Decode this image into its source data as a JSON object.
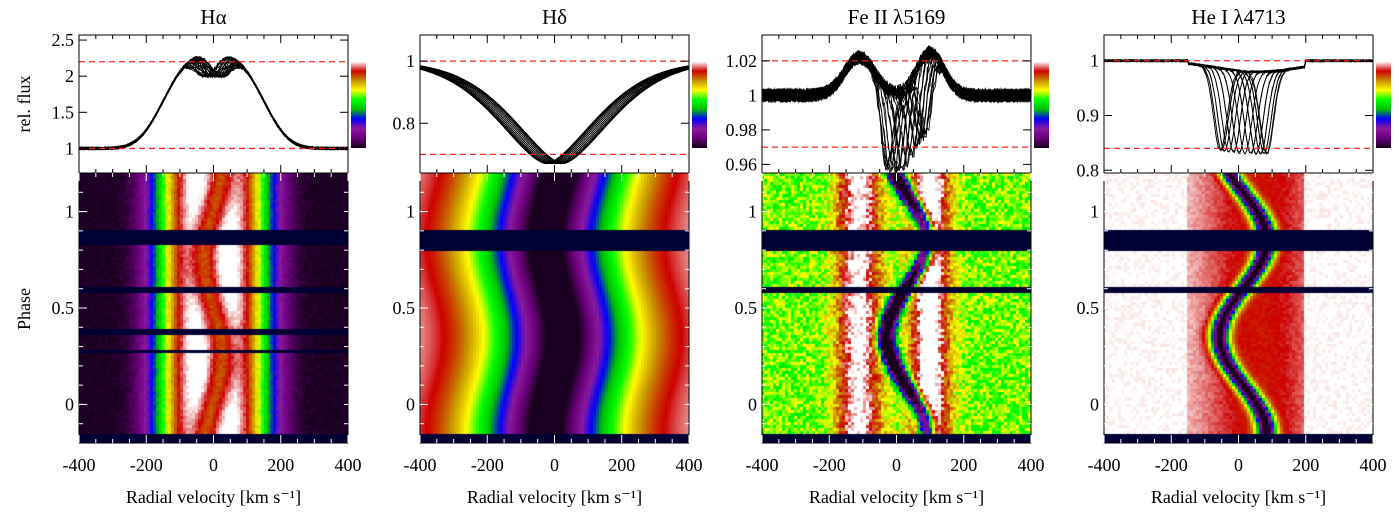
{
  "figure": {
    "shared_xlabel": "Radial velocity [km s⁻¹]",
    "profile_ylabel": "rel. flux",
    "phase_ylabel": "Phase",
    "colormap": [
      "#1a0020",
      "#6a007a",
      "#8a1aa0",
      "#0000ff",
      "#00c000",
      "#00ff00",
      "#ffff00",
      "#c89000",
      "#cc0000",
      "#ffffff"
    ],
    "gap_color": "#000033",
    "dashed_color": "#ff2020"
  },
  "chart_data": [
    {
      "type": "line+heatmap",
      "title": "Hα",
      "xlim": [
        -400,
        400
      ],
      "xticks": [
        -400,
        -200,
        0,
        200,
        400
      ],
      "ylim": [
        0.66,
        2.57
      ],
      "yticks": [
        1,
        1.5,
        2,
        2.5
      ],
      "ytick_labels": [
        "1",
        "1.5",
        "2",
        "2.5"
      ],
      "dashed_levels": [
        1.0,
        2.2
      ],
      "phase_lim": [
        -0.2,
        1.2
      ],
      "phase_ticks": [
        0,
        0.5,
        1
      ],
      "phase_gaps": [
        [
          0.82,
          0.9
        ],
        [
          0.585,
          0.61
        ],
        [
          0.36,
          0.385
        ],
        [
          0.26,
          0.285
        ]
      ],
      "line_model": "double-peaked emission, peaks ~2.25 at ±70, central dip ~1.9"
    },
    {
      "type": "line+heatmap",
      "title": "Hδ",
      "xlim": [
        -400,
        400
      ],
      "xticks": [
        -400,
        -200,
        0,
        200,
        400
      ],
      "ylim": [
        0.64,
        1.084
      ],
      "yticks": [
        0.8,
        1
      ],
      "ytick_labels": [
        "0.8",
        "1"
      ],
      "dashed_levels": [
        0.7,
        1.0
      ],
      "phase_lim": [
        -0.2,
        1.2
      ],
      "phase_ticks": [
        0,
        0.5,
        1
      ],
      "phase_gaps": [
        [
          0.8,
          0.9
        ]
      ],
      "line_model": "broad absorption, minimum ~0.67 moving between -50 and +50"
    },
    {
      "type": "line+heatmap",
      "title": "Fe II λ5169",
      "xlim": [
        -400,
        400
      ],
      "xticks": [
        -400,
        -200,
        0,
        200,
        400
      ],
      "ylim": [
        0.955,
        1.035
      ],
      "yticks": [
        0.96,
        0.98,
        1,
        1.02
      ],
      "ytick_labels": [
        "0.96",
        "0.98",
        "1",
        "1.02"
      ],
      "dashed_levels": [
        0.97,
        1.02
      ],
      "phase_lim": [
        -0.2,
        1.2
      ],
      "phase_ticks": [
        0,
        0.5,
        1
      ],
      "phase_gaps": [
        [
          0.8,
          0.9
        ],
        [
          0.585,
          0.61
        ]
      ],
      "line_model": "emission bumps ~1.025 at ±100, moving absorption to ~0.96"
    },
    {
      "type": "line+heatmap",
      "title": "He I λ4713",
      "xlim": [
        -400,
        400
      ],
      "xticks": [
        -400,
        -200,
        0,
        200,
        400
      ],
      "ylim": [
        0.795,
        1.047
      ],
      "yticks": [
        0.8,
        0.9,
        1
      ],
      "ytick_labels": [
        "0.8",
        "0.9",
        "1"
      ],
      "dashed_levels": [
        0.84,
        1.0
      ],
      "phase_lim": [
        -0.2,
        1.2
      ],
      "phase_ticks": [
        0,
        0.5,
        1
      ],
      "phase_gaps": [
        [
          0.8,
          0.9
        ],
        [
          0.585,
          0.61
        ]
      ],
      "line_model": "moving absorption to ~0.82 between -60 and +90"
    }
  ]
}
